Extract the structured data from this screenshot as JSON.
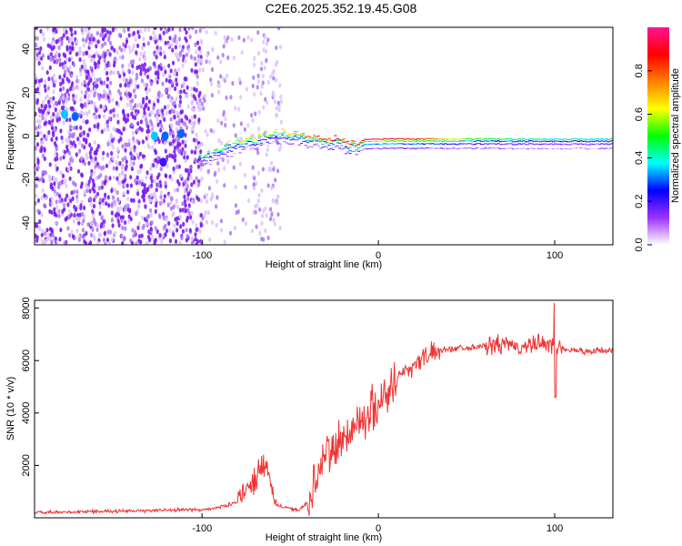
{
  "figure": {
    "title": "C2E6.2025.352.19.45.G08"
  },
  "chart_data": [
    {
      "type": "heatmap",
      "xlabel": "Height of straight line (km)",
      "ylabel": "Frequency (Hz)",
      "colorbar_label": "Normalized spectral amplitude",
      "xlim": [
        -195,
        133
      ],
      "ylim": [
        -50,
        50
      ],
      "xticks": [
        -100,
        0,
        100
      ],
      "yticks": [
        -40,
        -20,
        0,
        20,
        40
      ],
      "colorbar_range": [
        0.0,
        1.0
      ],
      "colorbar_ticks": [
        0.0,
        0.2,
        0.4,
        0.6,
        0.8
      ],
      "colormap": [
        "#ffffff",
        "#9b30ff",
        "#0000ff",
        "#00ffff",
        "#00ff00",
        "#ffff00",
        "#ff8000",
        "#ff0000",
        "#ff1493"
      ],
      "trace": [
        {
          "x": -102,
          "y": -7,
          "amp": 0.5
        },
        {
          "x": -95,
          "y": -6,
          "amp": 0.45
        },
        {
          "x": -88,
          "y": -3,
          "amp": 0.5
        },
        {
          "x": -80,
          "y": 0,
          "amp": 0.6
        },
        {
          "x": -72,
          "y": 1,
          "amp": 0.65
        },
        {
          "x": -64,
          "y": 3,
          "amp": 0.55
        },
        {
          "x": -55,
          "y": 4,
          "amp": 0.7
        },
        {
          "x": -45,
          "y": 3,
          "amp": 0.75
        },
        {
          "x": -35,
          "y": 2,
          "amp": 0.8
        },
        {
          "x": -25,
          "y": 1,
          "amp": 0.9
        },
        {
          "x": -15,
          "y": -1,
          "amp": 0.85
        },
        {
          "x": -5,
          "y": 0,
          "amp": 0.95
        },
        {
          "x": 20,
          "y": 0,
          "amp": 0.85
        },
        {
          "x": 50,
          "y": 0,
          "amp": 0.55
        },
        {
          "x": 80,
          "y": 0,
          "amp": 0.45
        },
        {
          "x": 110,
          "y": 0,
          "amp": 0.4
        },
        {
          "x": 133,
          "y": 0,
          "amp": 0.4
        }
      ]
    },
    {
      "type": "line",
      "xlabel": "Height of straight line (km)",
      "ylabel": "SNR (10 * v/v)",
      "xlim": [
        -195,
        133
      ],
      "ylim": [
        0,
        8300
      ],
      "xticks": [
        -100,
        0,
        100
      ],
      "yticks": [
        2000,
        4000,
        6000,
        8000
      ],
      "series": [
        {
          "color": "#ee3333",
          "x": [
            -195,
            -180,
            -160,
            -140,
            -120,
            -100,
            -90,
            -80,
            -75,
            -70,
            -66,
            -62,
            -58,
            -54,
            -50,
            -45,
            -40,
            -35,
            -30,
            -25,
            -20,
            -15,
            -10,
            -5,
            0,
            5,
            10,
            15,
            20,
            25,
            30,
            35,
            40,
            50,
            60,
            70,
            80,
            90,
            95,
            100,
            105,
            110,
            120,
            133
          ],
          "y": [
            200,
            200,
            250,
            250,
            300,
            300,
            400,
            600,
            1200,
            1500,
            1900,
            1600,
            500,
            400,
            350,
            300,
            600,
            1600,
            2300,
            2700,
            3000,
            3400,
            3700,
            4000,
            4400,
            4800,
            5300,
            5600,
            5800,
            6100,
            6300,
            6400,
            6450,
            6500,
            6550,
            6600,
            6500,
            6600,
            6700,
            6500,
            6450,
            6400,
            6350,
            6400
          ]
        }
      ]
    }
  ]
}
